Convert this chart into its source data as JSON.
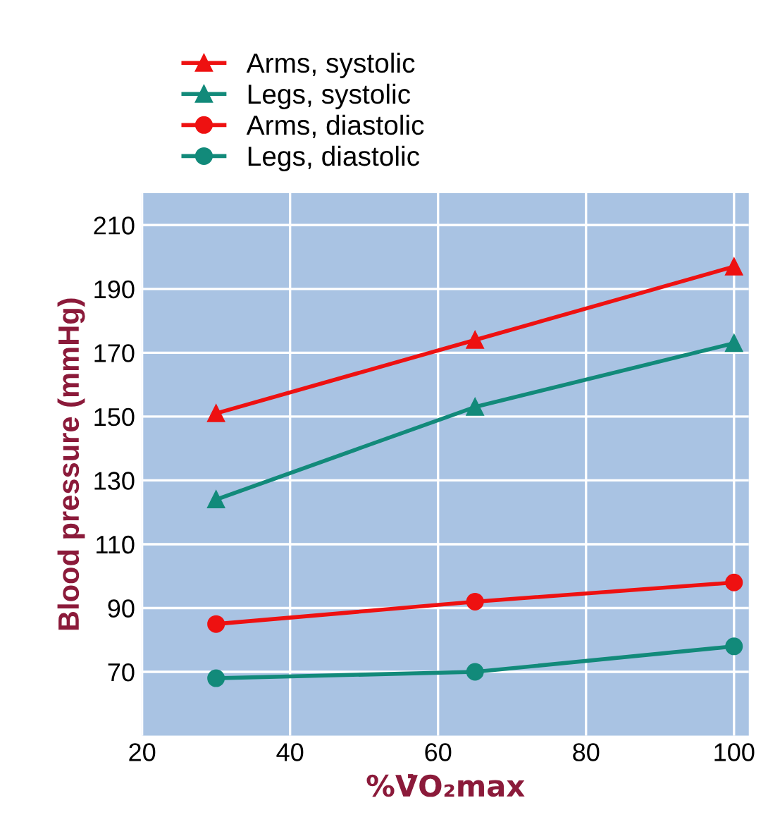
{
  "chart_data": {
    "type": "line",
    "xlabel": "%V̇O₂max",
    "ylabel": "Blood pressure (mmHg)",
    "xlim": [
      20,
      102
    ],
    "ylim": [
      50,
      220
    ],
    "xticks": [
      20,
      40,
      60,
      80,
      100
    ],
    "yticks": [
      70,
      90,
      110,
      130,
      150,
      170,
      190,
      210
    ],
    "grid": true,
    "legend": "top left",
    "line_style": "solid",
    "series": [
      {
        "name": "Arms, systolic",
        "color": "#ee1111",
        "marker": "triangle",
        "x": [
          30,
          65,
          100
        ],
        "values": [
          151,
          174,
          197
        ]
      },
      {
        "name": "Legs, systolic",
        "color": "#128a7a",
        "marker": "triangle",
        "x": [
          30,
          65,
          100
        ],
        "values": [
          124,
          153,
          173
        ]
      },
      {
        "name": "Arms, diastolic",
        "color": "#ee1111",
        "marker": "circle",
        "x": [
          30,
          65,
          100
        ],
        "values": [
          85,
          92,
          98
        ]
      },
      {
        "name": "Legs, diastolic",
        "color": "#128a7a",
        "marker": "circle",
        "x": [
          30,
          65,
          100
        ],
        "values": [
          68,
          70,
          78
        ]
      }
    ]
  }
}
